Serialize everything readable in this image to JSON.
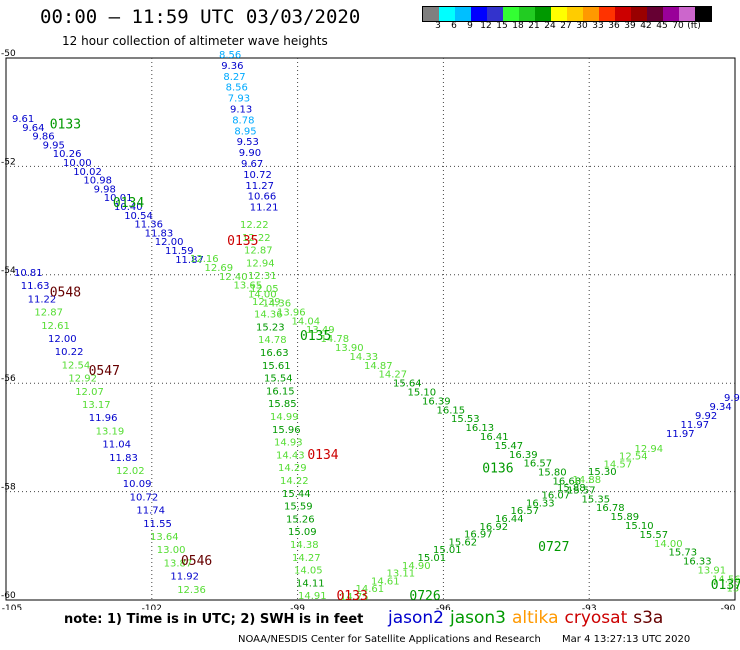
{
  "header": {
    "title": "00:00 – 11:59 UTC 03/03/2020",
    "subtitle": "12 hour collection of altimeter wave heights"
  },
  "colorbar": {
    "colors": [
      "#7f7f7f",
      "#00ffff",
      "#00bfff",
      "#0000ff",
      "#3333cc",
      "#33ff33",
      "#22cc22",
      "#009900",
      "#ffff00",
      "#ffcc00",
      "#ff9900",
      "#ff3300",
      "#cc0000",
      "#990000",
      "#660033",
      "#990099",
      "#cc66cc",
      "#000000"
    ],
    "ticks": [
      "3",
      "6",
      "9",
      "12",
      "15",
      "18",
      "21",
      "24",
      "27",
      "30",
      "33",
      "36",
      "39",
      "42",
      "45",
      "70",
      "(ft)"
    ]
  },
  "map": {
    "lon_ticks": [
      "-105",
      "-102",
      "-99",
      "-96",
      "-93",
      "-90"
    ],
    "lat_ticks": [
      "-50",
      "-52",
      "-54",
      "-56",
      "-58",
      "-60"
    ],
    "lon_range": [
      -105,
      -90
    ],
    "lat_range": [
      -60,
      -50
    ]
  },
  "tracks": [
    {
      "sat": "jason2",
      "labels": [
        "9.61",
        "9.64",
        "9.86",
        "9.95",
        "10.26",
        "10.00",
        "10.02",
        "10.98",
        "9.98",
        "10.01",
        "10.40",
        "10.54",
        "11.36",
        "11.83",
        "12.00",
        "11.59",
        "11.87"
      ],
      "colors": [
        "#0000cc",
        "#0000cc",
        "#0000cc",
        "#0000cc",
        "#0000cc",
        "#0000cc",
        "#0000cc",
        "#0000cc",
        "#0000cc",
        "#0000cc",
        "#0000cc",
        "#0000cc",
        "#0000cc",
        "#0000cc",
        "#0000cc",
        "#0000cc",
        "#0000cc"
      ],
      "start": [
        12,
        122
      ],
      "step": [
        10.2,
        8.8
      ]
    },
    {
      "sat": "jason2",
      "labels": [
        "8.56",
        "9.36",
        "8.27",
        "8.56",
        "7.93",
        "9.13",
        "8.78",
        "8.95",
        "9.53",
        "9.90",
        "9.67",
        "10.72",
        "11.27",
        "10.66",
        "11.21"
      ],
      "colors": [
        "#00aaff",
        "#0000cc",
        "#00aaff",
        "#00aaff",
        "#00aaff",
        "#0000cc",
        "#00aaff",
        "#00aaff",
        "#0000cc",
        "#0000cc",
        "#0000cc",
        "#0000cc",
        "#0000cc",
        "#0000cc",
        "#0000cc"
      ],
      "start": [
        219,
        58
      ],
      "step": [
        2.2,
        10.9
      ]
    },
    {
      "sat": "jason3",
      "labels": [
        "12.22",
        "12.22",
        "12.87",
        "12.94",
        "12.31",
        "12.05",
        "12.39",
        "14.36",
        "15.23",
        "14.78",
        "16.63",
        "15.61",
        "15.54",
        "16.15",
        "15.85",
        "14.99",
        "15.96",
        "14.93",
        "14.43",
        "14.29",
        "14.22",
        "15.44",
        "15.59",
        "15.26",
        "15.09",
        "14.38",
        "14.27",
        "14.05",
        "14.11",
        "14.91"
      ],
      "colors": [
        "#55dd33",
        "#55dd33",
        "#55dd33",
        "#55dd33",
        "#55dd33",
        "#55dd33",
        "#55dd33",
        "#55dd33",
        "#009900",
        "#55dd33",
        "#009900",
        "#009900",
        "#009900",
        "#009900",
        "#009900",
        "#55dd33",
        "#009900",
        "#55dd33",
        "#55dd33",
        "#55dd33",
        "#55dd33",
        "#009900",
        "#009900",
        "#009900",
        "#009900",
        "#55dd33",
        "#55dd33",
        "#55dd33",
        "#009900",
        "#55dd33"
      ],
      "start": [
        240,
        228
      ],
      "step": [
        2.0,
        12.8
      ]
    },
    {
      "sat": "jason3",
      "labels": [
        "12.16",
        "12.69",
        "12.40",
        "13.65",
        "14.00",
        "14.36",
        "13.96",
        "14.04",
        "13.49",
        "14.78",
        "13.90",
        "14.33",
        "14.87",
        "14.27",
        "15.64",
        "15.10",
        "16.39",
        "16.15",
        "15.53",
        "16.13",
        "16.41",
        "15.47",
        "16.39",
        "16.57",
        "15.80",
        "16.68",
        "15.57",
        "15.35",
        "16.78",
        "15.89",
        "15.10",
        "15.57",
        "14.00",
        "15.73",
        "16.33",
        "13.91",
        "14.56",
        "13.81"
      ],
      "colors": [
        "#55dd33",
        "#55dd33",
        "#55dd33",
        "#55dd33",
        "#55dd33",
        "#55dd33",
        "#55dd33",
        "#55dd33",
        "#55dd33",
        "#55dd33",
        "#55dd33",
        "#55dd33",
        "#55dd33",
        "#55dd33",
        "#009900",
        "#009900",
        "#009900",
        "#009900",
        "#009900",
        "#009900",
        "#009900",
        "#009900",
        "#009900",
        "#009900",
        "#009900",
        "#009900",
        "#009900",
        "#009900",
        "#009900",
        "#009900",
        "#009900",
        "#009900",
        "#55dd33",
        "#009900",
        "#009900",
        "#55dd33",
        "#55dd33",
        "#55dd33"
      ],
      "start": [
        190,
        262
      ],
      "step": [
        14.5,
        8.9
      ]
    },
    {
      "sat": "jason3",
      "labels": [
        "14.75",
        "14.61",
        "14.61",
        "13.11",
        "14.90",
        "15.01",
        "15.01",
        "15.62",
        "16.97",
        "16.92",
        "16.44",
        "16.57",
        "16.33",
        "16.07",
        "15.88",
        "14.88",
        "15.30",
        "14.57",
        "12.54",
        "12.94"
      ],
      "colors": [
        "#55dd33",
        "#55dd33",
        "#55dd33",
        "#55dd33",
        "#55dd33",
        "#009900",
        "#009900",
        "#009900",
        "#009900",
        "#009900",
        "#009900",
        "#009900",
        "#009900",
        "#009900",
        "#009900",
        "#55dd33",
        "#009900",
        "#55dd33",
        "#55dd33",
        "#55dd33"
      ],
      "start": [
        340,
        600
      ],
      "step": [
        15.5,
        -7.8
      ]
    },
    {
      "sat": "jason2",
      "labels": [
        "11.97",
        "11.97",
        "9.92",
        "9.34",
        "9.9"
      ],
      "colors": [
        "#0000cc",
        "#0000cc",
        "#0000cc",
        "#0000cc",
        "#0000cc"
      ],
      "start": [
        666,
        437
      ],
      "step": [
        14.5,
        -9.0
      ]
    },
    {
      "sat": "jason3",
      "labels": [
        "10.81",
        "11.63",
        "11.22",
        "12.87",
        "12.61",
        "12.00",
        "10.22",
        "12.54",
        "12.92",
        "12.07",
        "13.17",
        "11.96",
        "13.19",
        "11.04",
        "11.83",
        "12.02",
        "10.09",
        "10.72",
        "11.74",
        "11.55",
        "13.64",
        "13.00",
        "13.87",
        "11.92",
        "12.36"
      ],
      "colors": [
        "#0000cc",
        "#0000cc",
        "#0000cc",
        "#55dd33",
        "#55dd33",
        "#0000cc",
        "#0000cc",
        "#55dd33",
        "#55dd33",
        "#55dd33",
        "#55dd33",
        "#0000cc",
        "#55dd33",
        "#0000cc",
        "#0000cc",
        "#55dd33",
        "#0000cc",
        "#0000cc",
        "#0000cc",
        "#0000cc",
        "#55dd33",
        "#55dd33",
        "#55dd33",
        "#0000cc",
        "#55dd33"
      ],
      "start": [
        14,
        276
      ],
      "step": [
        6.8,
        13.2
      ]
    }
  ],
  "pass_labels": [
    {
      "text": "0133",
      "color": "#009900",
      "lon": -104.1,
      "lat": -51.3
    },
    {
      "text": "0134",
      "color": "#009900",
      "lon": -102.8,
      "lat": -52.75
    },
    {
      "text": "0135",
      "color": "#cc0000",
      "lon": -100.45,
      "lat": -53.45
    },
    {
      "text": "0548",
      "color": "#660000",
      "lon": -104.1,
      "lat": -54.4
    },
    {
      "text": "0135",
      "color": "#009900",
      "lon": -98.95,
      "lat": -55.2
    },
    {
      "text": "0547",
      "color": "#660000",
      "lon": -103.3,
      "lat": -55.85
    },
    {
      "text": "0134",
      "color": "#cc0000",
      "lon": -98.8,
      "lat": -57.4
    },
    {
      "text": "0136",
      "color": "#009900",
      "lon": -95.2,
      "lat": -57.65
    },
    {
      "text": "0727",
      "color": "#009900",
      "lon": -94.05,
      "lat": -59.1
    },
    {
      "text": "0546",
      "color": "#660000",
      "lon": -101.4,
      "lat": -59.35
    },
    {
      "text": "0137",
      "color": "#009900",
      "lon": -90.5,
      "lat": -59.8
    },
    {
      "text": "0133",
      "color": "#cc0000",
      "lon": -98.2,
      "lat": -60.0
    },
    {
      "text": "0726",
      "color": "#009900",
      "lon": -96.7,
      "lat": -60.0
    }
  ],
  "footer": {
    "notes": "note:  1) Time is in UTC; 2) SWH is in feet",
    "legend": [
      {
        "name": "jason2",
        "color": "#0000cc"
      },
      {
        "name": "jason3",
        "color": "#009900"
      },
      {
        "name": "altika",
        "color": "#ff9900"
      },
      {
        "name": "cryosat",
        "color": "#cc0000"
      },
      {
        "name": "s3a",
        "color": "#660000"
      }
    ],
    "credit": "NOAA/NESDIS Center for Satellite Applications and Research",
    "timestamp": "Mar  4 13:27:13 UTC 2020"
  }
}
